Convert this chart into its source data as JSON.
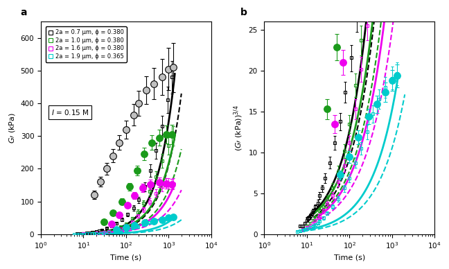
{
  "title_a": "a",
  "title_b": "b",
  "xlabel": "Time (s)",
  "ylabel_a": "G’ (kPa)",
  "ylabel_b": "(G’ (kPa))³/⁴",
  "legend_labels": [
    "2a = 0.7 μm, ϕ = 0.380",
    "2a = 1.0 μm, ϕ = 0.380",
    "2a = 1.6 μm, ϕ = 0.380",
    "2a = 1.9 μm, ϕ = 0.365"
  ],
  "legend_colors": [
    "black",
    "#1a9a1a",
    "#ee00ee",
    "#00cccc"
  ],
  "annotation": "I = 0.15 M",
  "xlim": [
    1.0,
    10000.0
  ],
  "ylim_a": [
    0,
    650
  ],
  "ylim_b": [
    0,
    26
  ],
  "series": {
    "black": {
      "sq_color": "black",
      "ci_facecolor": "#c0c0c0",
      "ci_edgecolor": "black",
      "times_sq": [
        7,
        8,
        9,
        10,
        11,
        12,
        13,
        14,
        16,
        18,
        20,
        23,
        27,
        35,
        45,
        60,
        80,
        110,
        150,
        200,
        280,
        380,
        500,
        700,
        950,
        1200
      ],
      "G_sq": [
        1,
        1,
        1.5,
        2,
        2.5,
        3,
        3.5,
        4,
        5,
        6,
        8,
        10,
        13,
        18,
        25,
        33,
        45,
        60,
        80,
        105,
        145,
        195,
        255,
        330,
        410,
        480
      ],
      "G_err_sq": [
        0.5,
        0.5,
        0.5,
        0.5,
        0.5,
        1,
        1,
        1,
        1,
        1.5,
        2,
        2,
        3,
        4,
        5,
        7,
        9,
        12,
        16,
        20,
        28,
        38,
        50,
        65,
        80,
        100
      ],
      "times_ci": [
        18,
        25,
        35,
        50,
        70,
        100,
        150,
        200,
        300,
        450,
        700,
        1000,
        1300
      ],
      "G_ci": [
        120,
        160,
        200,
        240,
        280,
        320,
        365,
        400,
        440,
        460,
        480,
        505,
        510
      ],
      "G_err_ci": [
        25,
        30,
        35,
        40,
        45,
        55,
        65,
        75,
        85,
        95,
        110,
        130,
        150
      ]
    },
    "green": {
      "sq_color": "#1a9a1a",
      "ci_facecolor": "#1a9a1a",
      "ci_edgecolor": "#1a9a1a",
      "times_sq": [
        10,
        12,
        14,
        16,
        18,
        20,
        25,
        30,
        40,
        55,
        75,
        100,
        140,
        190,
        260,
        360,
        500,
        700,
        1000,
        1300
      ],
      "G_sq": [
        1,
        1.5,
        2,
        2.5,
        3,
        4,
        5,
        7,
        10,
        15,
        22,
        32,
        48,
        68,
        95,
        130,
        175,
        225,
        270,
        300
      ],
      "G_err_sq": [
        0.5,
        0.5,
        0.5,
        1,
        1,
        1,
        1.5,
        2,
        3,
        4,
        5,
        7,
        10,
        14,
        18,
        25,
        33,
        42,
        52,
        60
      ],
      "times_ci": [
        30,
        50,
        80,
        120,
        180,
        270,
        400,
        600,
        900,
        1200
      ],
      "G_ci": [
        38,
        65,
        100,
        145,
        195,
        245,
        280,
        295,
        305,
        305
      ],
      "G_err_ci": [
        8,
        12,
        18,
        24,
        30,
        38,
        44,
        50,
        56,
        60
      ]
    },
    "magenta": {
      "sq_color": "#ee00ee",
      "ci_facecolor": "#ee00ee",
      "ci_edgecolor": "#ee00ee",
      "times_sq": [
        8,
        10,
        12,
        14,
        16,
        18,
        20,
        25,
        30,
        40,
        55,
        75,
        100,
        140,
        190,
        260,
        360,
        500,
        700,
        1000,
        1300
      ],
      "G_sq": [
        0.5,
        0.8,
        1,
        1.5,
        2,
        2.5,
        3,
        4,
        6,
        8,
        12,
        17,
        25,
        38,
        55,
        75,
        100,
        125,
        145,
        155,
        155
      ],
      "G_err_sq": [
        0.3,
        0.3,
        0.5,
        0.5,
        0.5,
        0.5,
        1,
        1,
        1.5,
        2,
        3,
        4,
        5,
        8,
        11,
        14,
        18,
        23,
        28,
        32,
        32
      ],
      "times_ci": [
        45,
        70,
        110,
        160,
        250,
        380,
        600,
        900,
        1200
      ],
      "G_ci": [
        32,
        58,
        88,
        118,
        142,
        152,
        158,
        155,
        153
      ],
      "G_err_ci": [
        7,
        11,
        16,
        21,
        25,
        28,
        30,
        32,
        33
      ]
    },
    "cyan": {
      "sq_color": "#00cccc",
      "ci_facecolor": "#00cccc",
      "ci_edgecolor": "#00cccc",
      "times_sq": [
        6,
        7,
        8,
        9,
        10,
        12,
        14,
        16,
        18,
        20,
        25,
        30,
        40,
        55,
        75,
        100,
        140,
        190,
        260,
        360,
        500,
        700,
        1000,
        1300
      ],
      "G_sq": [
        0.2,
        0.3,
        0.4,
        0.5,
        0.6,
        0.8,
        1,
        1.2,
        1.5,
        1.8,
        2.5,
        3.5,
        5,
        7,
        10,
        13,
        18,
        23,
        29,
        36,
        42,
        47,
        51,
        53
      ],
      "G_err_sq": [
        0.2,
        0.2,
        0.2,
        0.2,
        0.2,
        0.3,
        0.3,
        0.4,
        0.4,
        0.5,
        0.6,
        0.8,
        1,
        1.5,
        2,
        2.5,
        3.5,
        4.5,
        5.5,
        7,
        8,
        9,
        10,
        10
      ],
      "times_ci": [
        60,
        100,
        160,
        280,
        450,
        700,
        1000,
        1300
      ],
      "G_ci": [
        14,
        20,
        27,
        35,
        40,
        45,
        50,
        52
      ],
      "G_err_ci": [
        3,
        4,
        5,
        6,
        7,
        8,
        9,
        10
      ]
    }
  },
  "fit_lines": [
    {
      "color": "black",
      "lw": 2.0,
      "ls": "-",
      "t1": 10,
      "t2": 1400,
      "G1": 2.5,
      "G2": 490
    },
    {
      "color": "black",
      "lw": 1.5,
      "ls": "--",
      "t1": 10,
      "t2": 2000,
      "G1": 1.8,
      "G2": 430
    },
    {
      "color": "#1a9a1a",
      "lw": 2.0,
      "ls": "-",
      "t1": 15,
      "t2": 1400,
      "G1": 3.5,
      "G2": 300
    },
    {
      "color": "#1a9a1a",
      "lw": 1.5,
      "ls": "--",
      "t1": 15,
      "t2": 2000,
      "G1": 2.5,
      "G2": 260
    },
    {
      "color": "#ee00ee",
      "lw": 2.0,
      "ls": "-",
      "t1": 20,
      "t2": 1400,
      "G1": 3.0,
      "G2": 155
    },
    {
      "color": "#ee00ee",
      "lw": 1.5,
      "ls": "--",
      "t1": 20,
      "t2": 2000,
      "G1": 2.2,
      "G2": 135
    },
    {
      "color": "#00cccc",
      "lw": 2.0,
      "ls": "-",
      "t1": 8,
      "t2": 1400,
      "G1": 0.35,
      "G2": 52
    },
    {
      "color": "#00cccc",
      "lw": 1.5,
      "ls": "--",
      "t1": 8,
      "t2": 2000,
      "G1": 0.25,
      "G2": 44
    }
  ]
}
